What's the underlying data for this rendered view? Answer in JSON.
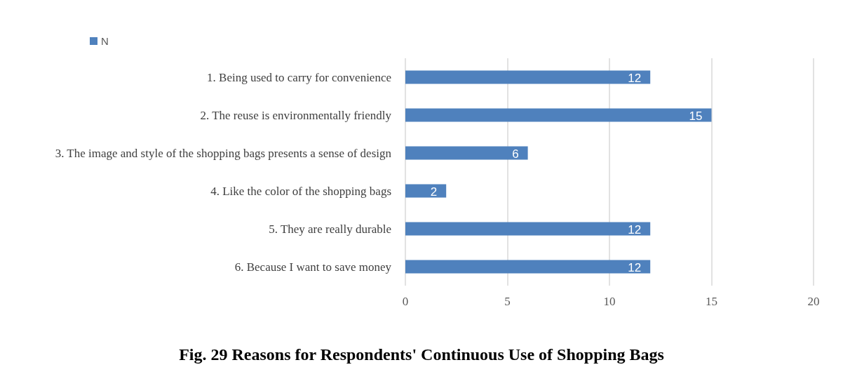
{
  "chart_data": {
    "type": "bar",
    "orientation": "horizontal",
    "title": "Fig. 29 Reasons for Respondents' Continuous Use of Shopping Bags",
    "categories": [
      "1. Being used to carry for convenience",
      "2. The reuse is environmentally friendly",
      "3. The image and style of the shopping bags presents a sense of design",
      "4. Like the color of the shopping bags",
      "5. They are really durable",
      "6. Because I want to save money"
    ],
    "series": [
      {
        "name": "N",
        "color": "#4f81bd",
        "values": [
          12,
          15,
          6,
          2,
          12,
          12
        ]
      }
    ],
    "xlim": [
      0,
      20
    ],
    "xticks": [
      0,
      5,
      10,
      15,
      20
    ],
    "grid": "x",
    "legend": "top left",
    "data_labels": true
  }
}
